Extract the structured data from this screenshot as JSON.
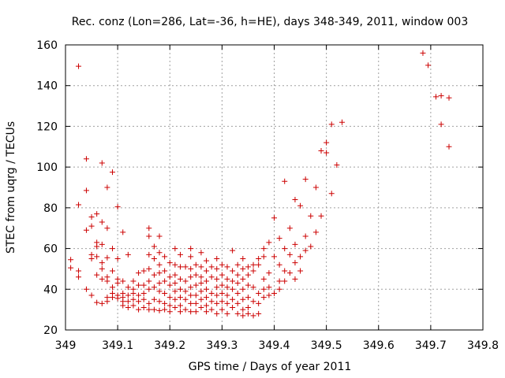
{
  "chart_data": {
    "type": "scatter",
    "title": "Rec. conz (Lon=286, Lat=-36, h=HE), days 348-349, 2011, window 003",
    "xlabel": "GPS time / Days of year 2011",
    "ylabel": "STEC from uqrg / TECUs",
    "xlim": [
      349,
      349.8
    ],
    "ylim": [
      20,
      160
    ],
    "xticks": [
      "349",
      "349.1",
      "349.2",
      "349.3",
      "349.4",
      "349.5",
      "349.6",
      "349.7",
      "349.8"
    ],
    "yticks": [
      "20",
      "40",
      "60",
      "80",
      "100",
      "120",
      "140",
      "160"
    ],
    "grid": true,
    "marker": "plus",
    "color": "#cc0000",
    "series": [
      {
        "name": "",
        "points": [
          [
            349.025,
            149.5
          ],
          [
            349.025,
            81.5
          ],
          [
            349.025,
            49
          ],
          [
            349.025,
            46
          ],
          [
            349.01,
            54.5
          ],
          [
            349.01,
            50.5
          ],
          [
            349.04,
            104
          ],
          [
            349.04,
            88.5
          ],
          [
            349.04,
            69
          ],
          [
            349.04,
            40
          ],
          [
            349.05,
            75.5
          ],
          [
            349.05,
            71
          ],
          [
            349.05,
            57
          ],
          [
            349.05,
            55
          ],
          [
            349.05,
            37
          ],
          [
            349.06,
            77
          ],
          [
            349.06,
            63
          ],
          [
            349.06,
            61
          ],
          [
            349.06,
            56
          ],
          [
            349.06,
            47
          ],
          [
            349.06,
            33.5
          ],
          [
            349.07,
            102
          ],
          [
            349.07,
            73
          ],
          [
            349.07,
            62
          ],
          [
            349.07,
            53
          ],
          [
            349.07,
            50
          ],
          [
            349.07,
            45
          ],
          [
            349.07,
            33
          ],
          [
            349.08,
            90
          ],
          [
            349.08,
            70
          ],
          [
            349.08,
            55.5
          ],
          [
            349.08,
            46
          ],
          [
            349.08,
            44
          ],
          [
            349.08,
            36
          ],
          [
            349.08,
            34
          ],
          [
            349.09,
            97.5
          ],
          [
            349.09,
            60
          ],
          [
            349.09,
            49
          ],
          [
            349.09,
            41
          ],
          [
            349.09,
            38
          ],
          [
            349.09,
            36
          ],
          [
            349.1,
            80.5
          ],
          [
            349.1,
            55
          ],
          [
            349.1,
            45
          ],
          [
            349.1,
            43
          ],
          [
            349.1,
            37
          ],
          [
            349.1,
            35.5
          ],
          [
            349.11,
            68
          ],
          [
            349.11,
            44
          ],
          [
            349.11,
            38
          ],
          [
            349.11,
            36
          ],
          [
            349.11,
            34
          ],
          [
            349.11,
            32
          ],
          [
            349.12,
            57
          ],
          [
            349.12,
            41
          ],
          [
            349.12,
            37
          ],
          [
            349.12,
            34
          ],
          [
            349.12,
            31
          ],
          [
            349.13,
            44
          ],
          [
            349.13,
            40
          ],
          [
            349.13,
            38
          ],
          [
            349.13,
            35
          ],
          [
            349.13,
            32
          ],
          [
            349.14,
            48
          ],
          [
            349.14,
            42
          ],
          [
            349.14,
            37
          ],
          [
            349.14,
            34
          ],
          [
            349.14,
            30
          ],
          [
            349.15,
            49
          ],
          [
            349.15,
            42
          ],
          [
            349.15,
            38
          ],
          [
            349.15,
            35
          ],
          [
            349.15,
            31
          ],
          [
            349.16,
            70
          ],
          [
            349.16,
            66
          ],
          [
            349.16,
            57
          ],
          [
            349.16,
            50
          ],
          [
            349.16,
            44
          ],
          [
            349.16,
            40
          ],
          [
            349.16,
            33
          ],
          [
            349.16,
            30
          ],
          [
            349.17,
            61
          ],
          [
            349.17,
            55
          ],
          [
            349.17,
            47
          ],
          [
            349.17,
            41
          ],
          [
            349.17,
            35
          ],
          [
            349.17,
            30
          ],
          [
            349.18,
            66
          ],
          [
            349.18,
            58
          ],
          [
            349.18,
            52
          ],
          [
            349.18,
            48
          ],
          [
            349.18,
            43
          ],
          [
            349.18,
            39
          ],
          [
            349.18,
            34
          ],
          [
            349.18,
            29.5
          ],
          [
            349.19,
            56
          ],
          [
            349.19,
            49
          ],
          [
            349.19,
            44
          ],
          [
            349.19,
            38
          ],
          [
            349.19,
            33
          ],
          [
            349.19,
            30
          ],
          [
            349.2,
            53
          ],
          [
            349.2,
            46
          ],
          [
            349.2,
            42
          ],
          [
            349.2,
            36
          ],
          [
            349.2,
            32
          ],
          [
            349.2,
            29
          ],
          [
            349.21,
            60
          ],
          [
            349.21,
            52
          ],
          [
            349.21,
            47
          ],
          [
            349.21,
            43
          ],
          [
            349.21,
            39
          ],
          [
            349.21,
            35
          ],
          [
            349.21,
            31
          ],
          [
            349.22,
            57
          ],
          [
            349.22,
            51
          ],
          [
            349.22,
            45
          ],
          [
            349.22,
            40
          ],
          [
            349.22,
            36
          ],
          [
            349.22,
            32
          ],
          [
            349.22,
            29
          ],
          [
            349.23,
            51
          ],
          [
            349.23,
            44
          ],
          [
            349.23,
            39
          ],
          [
            349.23,
            35
          ],
          [
            349.23,
            30
          ],
          [
            349.24,
            60
          ],
          [
            349.24,
            56
          ],
          [
            349.24,
            50
          ],
          [
            349.24,
            46
          ],
          [
            349.24,
            41
          ],
          [
            349.24,
            37
          ],
          [
            349.24,
            33
          ],
          [
            349.24,
            29
          ],
          [
            349.25,
            52
          ],
          [
            349.25,
            47
          ],
          [
            349.25,
            42
          ],
          [
            349.25,
            37
          ],
          [
            349.25,
            33
          ],
          [
            349.25,
            29
          ],
          [
            349.26,
            58
          ],
          [
            349.26,
            51
          ],
          [
            349.26,
            46
          ],
          [
            349.26,
            43
          ],
          [
            349.26,
            39
          ],
          [
            349.26,
            35
          ],
          [
            349.26,
            31
          ],
          [
            349.27,
            54
          ],
          [
            349.27,
            49
          ],
          [
            349.27,
            44
          ],
          [
            349.27,
            40
          ],
          [
            349.27,
            36
          ],
          [
            349.27,
            32
          ],
          [
            349.27,
            29
          ],
          [
            349.28,
            51
          ],
          [
            349.28,
            46
          ],
          [
            349.28,
            38
          ],
          [
            349.28,
            34
          ],
          [
            349.28,
            30
          ],
          [
            349.29,
            55
          ],
          [
            349.29,
            50
          ],
          [
            349.29,
            45
          ],
          [
            349.29,
            41
          ],
          [
            349.29,
            37
          ],
          [
            349.29,
            33
          ],
          [
            349.29,
            28
          ],
          [
            349.3,
            52
          ],
          [
            349.3,
            47
          ],
          [
            349.3,
            42
          ],
          [
            349.3,
            38
          ],
          [
            349.3,
            34
          ],
          [
            349.3,
            30
          ],
          [
            349.31,
            51
          ],
          [
            349.31,
            45
          ],
          [
            349.31,
            41
          ],
          [
            349.31,
            37
          ],
          [
            349.31,
            33
          ],
          [
            349.31,
            28
          ],
          [
            349.32,
            59
          ],
          [
            349.32,
            49
          ],
          [
            349.32,
            44
          ],
          [
            349.32,
            40
          ],
          [
            349.32,
            35
          ],
          [
            349.32,
            31
          ],
          [
            349.33,
            52
          ],
          [
            349.33,
            47
          ],
          [
            349.33,
            43
          ],
          [
            349.33,
            38
          ],
          [
            349.33,
            33
          ],
          [
            349.33,
            28
          ],
          [
            349.34,
            55
          ],
          [
            349.34,
            50
          ],
          [
            349.34,
            45
          ],
          [
            349.34,
            40
          ],
          [
            349.34,
            35
          ],
          [
            349.34,
            30
          ],
          [
            349.34,
            27
          ],
          [
            349.35,
            51
          ],
          [
            349.35,
            47
          ],
          [
            349.35,
            42
          ],
          [
            349.35,
            36
          ],
          [
            349.35,
            31
          ],
          [
            349.35,
            28
          ],
          [
            349.36,
            52
          ],
          [
            349.36,
            49
          ],
          [
            349.36,
            41
          ],
          [
            349.36,
            34
          ],
          [
            349.36,
            27
          ],
          [
            349.37,
            55
          ],
          [
            349.37,
            52
          ],
          [
            349.37,
            38
          ],
          [
            349.37,
            33
          ],
          [
            349.37,
            28
          ],
          [
            349.38,
            60
          ],
          [
            349.38,
            56
          ],
          [
            349.38,
            45
          ],
          [
            349.38,
            40
          ],
          [
            349.38,
            36
          ],
          [
            349.39,
            63
          ],
          [
            349.39,
            48
          ],
          [
            349.39,
            41
          ],
          [
            349.39,
            37
          ],
          [
            349.4,
            75
          ],
          [
            349.4,
            56
          ],
          [
            349.4,
            38
          ],
          [
            349.41,
            65
          ],
          [
            349.41,
            52
          ],
          [
            349.41,
            44
          ],
          [
            349.41,
            40
          ],
          [
            349.42,
            93
          ],
          [
            349.42,
            60
          ],
          [
            349.42,
            49
          ],
          [
            349.42,
            44
          ],
          [
            349.43,
            70
          ],
          [
            349.43,
            57
          ],
          [
            349.43,
            48
          ],
          [
            349.44,
            84
          ],
          [
            349.44,
            62
          ],
          [
            349.44,
            53
          ],
          [
            349.44,
            45
          ],
          [
            349.45,
            81
          ],
          [
            349.45,
            56
          ],
          [
            349.45,
            49
          ],
          [
            349.46,
            94
          ],
          [
            349.46,
            66
          ],
          [
            349.46,
            59
          ],
          [
            349.47,
            76
          ],
          [
            349.47,
            61
          ],
          [
            349.48,
            90
          ],
          [
            349.48,
            68
          ],
          [
            349.49,
            108
          ],
          [
            349.49,
            76
          ],
          [
            349.5,
            112
          ],
          [
            349.5,
            107
          ],
          [
            349.51,
            121
          ],
          [
            349.51,
            87
          ],
          [
            349.52,
            101
          ],
          [
            349.53,
            122
          ],
          [
            349.685,
            156
          ],
          [
            349.695,
            150
          ],
          [
            349.71,
            134.5
          ],
          [
            349.72,
            135
          ],
          [
            349.72,
            121
          ],
          [
            349.735,
            134
          ],
          [
            349.735,
            110
          ]
        ]
      }
    ]
  }
}
